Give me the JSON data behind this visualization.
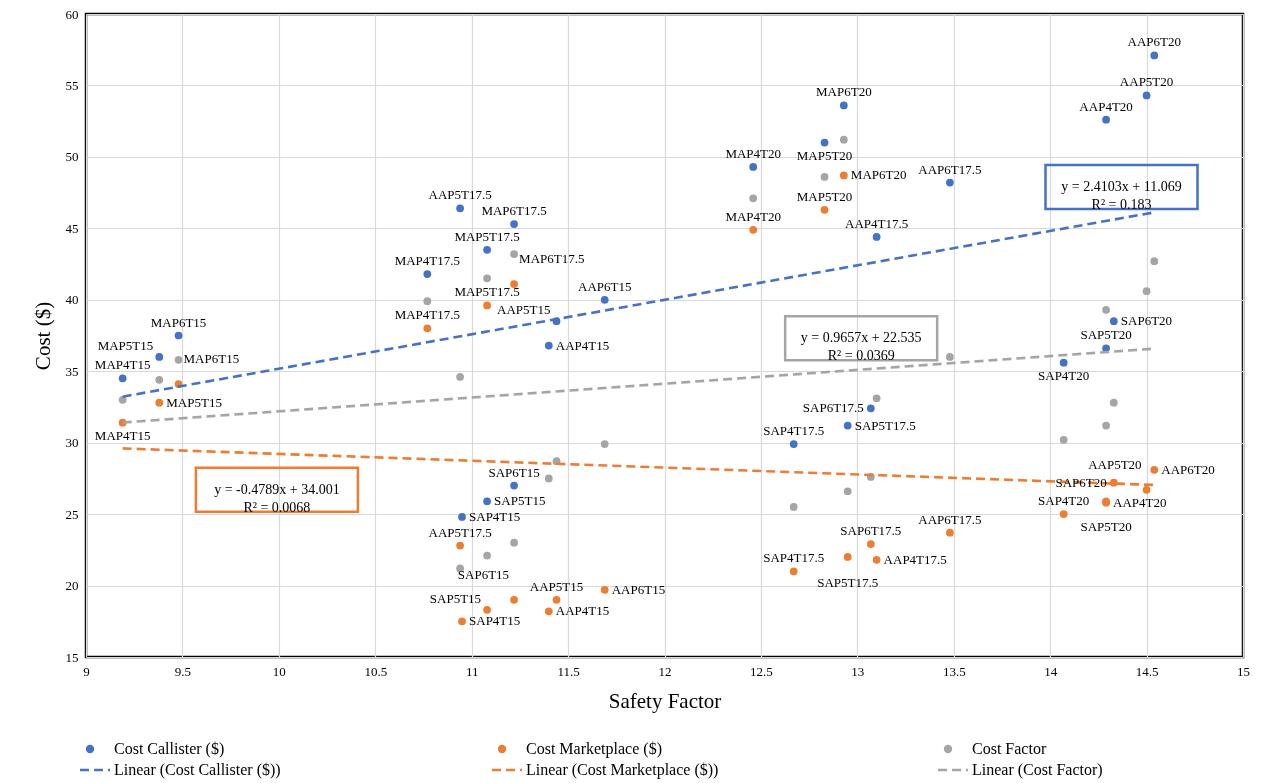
{
  "chart_data": {
    "type": "scatter",
    "xlabel": "Safety Factor",
    "ylabel": "Cost ($)",
    "xlim": [
      9,
      15
    ],
    "ylim": [
      15,
      60
    ],
    "xticks": [
      9,
      9.5,
      10,
      10.5,
      11,
      11.5,
      12,
      12.5,
      13,
      13.5,
      14,
      14.5,
      15
    ],
    "yticks": [
      15,
      20,
      25,
      30,
      35,
      40,
      45,
      50,
      55,
      60
    ],
    "grid": true,
    "legend": "bottom",
    "marker": "circle",
    "annotations": [
      "y = 2.4103x + 11.069\nR² = 0.183",
      "y = -0.4789x + 34.001\nR² = 0.0068",
      "y = 0.9657x + 22.535\nR² = 0.0369"
    ],
    "series": [
      {
        "name": "Cost Callister ($)",
        "type": "scatter",
        "color": "#4472c4",
        "x": [
          9.19,
          9.38,
          9.48,
          10.77,
          11.08,
          11.22,
          10.94,
          11.4,
          11.44,
          11.69,
          10.95,
          11.08,
          11.22,
          12.46,
          12.83,
          12.93,
          13.1,
          13.48,
          12.67,
          12.95,
          13.07,
          14.29,
          14.5,
          14.54,
          14.07,
          14.29,
          14.33
        ],
        "values": [
          34.5,
          36.0,
          37.5,
          41.8,
          43.5,
          45.3,
          46.4,
          36.8,
          38.5,
          40.0,
          24.8,
          25.9,
          27.0,
          49.3,
          51.0,
          53.6,
          44.4,
          48.2,
          29.9,
          31.2,
          32.4,
          52.6,
          54.3,
          57.1,
          35.6,
          36.6,
          38.5
        ],
        "value_labels": [
          "MAP4T15",
          "MAP5T15",
          "MAP6T15",
          "MAP4T17.5",
          "MAP5T17.5",
          "MAP6T17.5",
          "AAP5T17.5",
          "AAP4T15",
          "AAP5T15",
          "AAP6T15",
          "SAP4T15",
          "SAP5T15",
          "SAP6T15",
          "MAP4T20",
          "MAP5T20",
          "MAP6T20",
          "AAP4T17.5",
          "AAP6T17.5",
          "SAP4T17.5",
          "SAP5T17.5",
          "SAP6T17.5",
          "AAP4T20",
          "AAP5T20",
          "AAP6T20",
          "SAP4T20",
          "SAP5T20",
          "SAP6T20"
        ]
      },
      {
        "name": "Cost Marketplace ($)",
        "type": "scatter",
        "color": "#ed7d31",
        "x": [
          9.19,
          9.38,
          9.48,
          10.77,
          11.08,
          11.22,
          10.94,
          11.4,
          11.44,
          11.69,
          10.95,
          11.08,
          11.22,
          12.46,
          12.83,
          12.93,
          13.1,
          13.48,
          12.67,
          12.95,
          13.07,
          14.29,
          14.5,
          14.54,
          14.07,
          14.29,
          14.33
        ],
        "values": [
          31.4,
          32.8,
          34.1,
          38.0,
          39.6,
          41.1,
          22.8,
          18.2,
          19.0,
          19.7,
          17.5,
          18.3,
          19.0,
          44.9,
          46.3,
          48.7,
          21.8,
          23.7,
          21.0,
          22.0,
          22.9,
          25.8,
          26.7,
          28.1,
          25.0,
          25.9,
          27.2
        ],
        "value_labels": [
          "MAP4T15",
          "MAP5T15",
          "MAP6T15",
          "MAP4T17.5",
          "MAP5T17.5",
          "MAP6T17.5",
          "AAP5T17.5",
          "AAP4T15",
          "AAP5T15",
          "AAP6T15",
          "SAP4T15",
          "SAP5T15",
          "SAP6T15",
          "MAP4T20",
          "MAP5T20",
          "MAP6T20",
          "AAP4T17.5",
          "AAP6T17.5",
          "SAP4T17.5",
          "SAP5T17.5",
          "SAP6T17.5",
          "AAP4T20",
          "AAP5T20",
          "AAP6T20",
          "SAP4T20",
          "SAP5T20",
          "SAP6T20"
        ]
      },
      {
        "name": "Cost Factor",
        "type": "scatter",
        "color": "#a5a5a5",
        "x": [
          9.19,
          9.38,
          9.48,
          10.77,
          11.08,
          11.22,
          10.94,
          11.4,
          11.44,
          11.69,
          10.94,
          11.08,
          11.22,
          12.46,
          12.83,
          12.93,
          13.1,
          13.48,
          12.67,
          12.95,
          13.07,
          14.29,
          14.5,
          14.54,
          14.07,
          14.29,
          14.33
        ],
        "values": [
          33.0,
          34.4,
          35.8,
          39.9,
          41.5,
          43.2,
          34.6,
          27.5,
          28.7,
          29.9,
          21.2,
          22.1,
          23.0,
          47.1,
          48.6,
          51.2,
          33.1,
          36.0,
          25.5,
          26.6,
          27.6,
          39.3,
          40.6,
          42.7,
          30.2,
          31.2,
          32.8
        ]
      },
      {
        "name": "Linear (Cost Callister ($))",
        "type": "line",
        "marker": "none",
        "line_style": "dashed",
        "color": "#4472c4",
        "x": [
          9.19,
          14.54
        ],
        "values": [
          33.22,
          46.12
        ]
      },
      {
        "name": "Linear (Cost Marketplace ($))",
        "type": "line",
        "marker": "none",
        "line_style": "dashed",
        "color": "#ed7d31",
        "x": [
          9.19,
          14.54
        ],
        "values": [
          29.6,
          27.04
        ]
      },
      {
        "name": "Linear (Cost Factor)",
        "type": "line",
        "marker": "none",
        "line_style": "dashed",
        "color": "#a5a5a5",
        "x": [
          9.19,
          14.54
        ],
        "values": [
          31.41,
          36.58
        ]
      }
    ]
  }
}
